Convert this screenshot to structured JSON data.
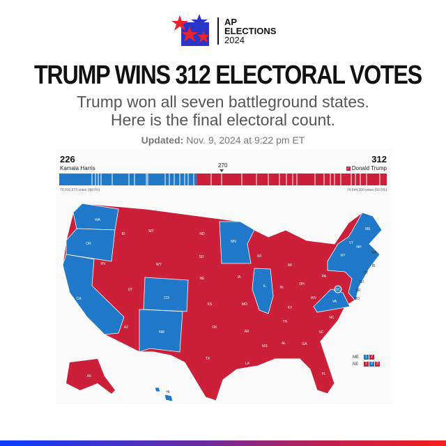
{
  "logo": {
    "line1": "AP",
    "line2": "ELECTIONS",
    "line3": "2024"
  },
  "headline": "TRUMP WINS 312 ELECTORAL VOTES",
  "subhead": [
    "Trump won all seven battleground states.",
    "Here is the final electoral count."
  ],
  "updated": {
    "label": "Updated:",
    "value": "Nov. 9, 2024 at 9:22 pm ET"
  },
  "colors": {
    "dem": "#1f78c8",
    "rep": "#cc1f3a"
  },
  "tally": {
    "harris": {
      "ev": "226",
      "name": "Kamala Harris",
      "votes": "70,910,573 votes (48.0%)"
    },
    "trump": {
      "ev": "312",
      "name": "Donald Trump",
      "votes": "74,644,300 votes (50.5%)"
    },
    "threshold": "270",
    "total_ev": 538
  },
  "states": [
    {
      "abbr": "WA",
      "winner": "D"
    },
    {
      "abbr": "OR",
      "winner": "D"
    },
    {
      "abbr": "CA",
      "winner": "D"
    },
    {
      "abbr": "NV",
      "winner": "R"
    },
    {
      "abbr": "ID",
      "winner": "R"
    },
    {
      "abbr": "MT",
      "winner": "R"
    },
    {
      "abbr": "WY",
      "winner": "R"
    },
    {
      "abbr": "UT",
      "winner": "R"
    },
    {
      "abbr": "AZ",
      "winner": "R"
    },
    {
      "abbr": "CO",
      "winner": "D"
    },
    {
      "abbr": "NM",
      "winner": "D"
    },
    {
      "abbr": "ND",
      "winner": "R"
    },
    {
      "abbr": "SD",
      "winner": "R"
    },
    {
      "abbr": "NE",
      "winner": "R"
    },
    {
      "abbr": "KS",
      "winner": "R"
    },
    {
      "abbr": "OK",
      "winner": "R"
    },
    {
      "abbr": "TX",
      "winner": "R"
    },
    {
      "abbr": "MN",
      "winner": "D"
    },
    {
      "abbr": "IA",
      "winner": "R"
    },
    {
      "abbr": "MO",
      "winner": "R"
    },
    {
      "abbr": "AR",
      "winner": "R"
    },
    {
      "abbr": "LA",
      "winner": "R"
    },
    {
      "abbr": "WI",
      "winner": "R"
    },
    {
      "abbr": "IL",
      "winner": "D"
    },
    {
      "abbr": "MI",
      "winner": "R"
    },
    {
      "abbr": "IN",
      "winner": "R"
    },
    {
      "abbr": "OH",
      "winner": "R"
    },
    {
      "abbr": "KY",
      "winner": "R"
    },
    {
      "abbr": "TN",
      "winner": "R"
    },
    {
      "abbr": "MS",
      "winner": "R"
    },
    {
      "abbr": "AL",
      "winner": "R"
    },
    {
      "abbr": "GA",
      "winner": "R"
    },
    {
      "abbr": "FL",
      "winner": "R"
    },
    {
      "abbr": "SC",
      "winner": "R"
    },
    {
      "abbr": "NC",
      "winner": "R"
    },
    {
      "abbr": "VA",
      "winner": "D"
    },
    {
      "abbr": "WV",
      "winner": "R"
    },
    {
      "abbr": "PA",
      "winner": "R"
    },
    {
      "abbr": "NY",
      "winner": "D"
    },
    {
      "abbr": "VT",
      "winner": "D"
    },
    {
      "abbr": "NH",
      "winner": "D"
    },
    {
      "abbr": "ME",
      "winner": "D"
    },
    {
      "abbr": "MA",
      "winner": "D"
    },
    {
      "abbr": "RI",
      "winner": "D"
    },
    {
      "abbr": "CT",
      "winner": "D"
    },
    {
      "abbr": "NJ",
      "winner": "D"
    },
    {
      "abbr": "DE",
      "winner": "D"
    },
    {
      "abbr": "MD",
      "winner": "D"
    },
    {
      "abbr": "DC",
      "winner": "D"
    },
    {
      "abbr": "AK",
      "winner": "R"
    },
    {
      "abbr": "HI",
      "winner": "D"
    }
  ],
  "split_states": [
    {
      "abbr": "ME",
      "districts": [
        {
          "n": "1",
          "winner": "D"
        },
        {
          "n": "2",
          "winner": "R"
        }
      ]
    },
    {
      "abbr": "NE",
      "districts": [
        {
          "n": "1",
          "winner": "R"
        },
        {
          "n": "2",
          "winner": "D"
        },
        {
          "n": "3",
          "winner": "R"
        }
      ]
    }
  ]
}
